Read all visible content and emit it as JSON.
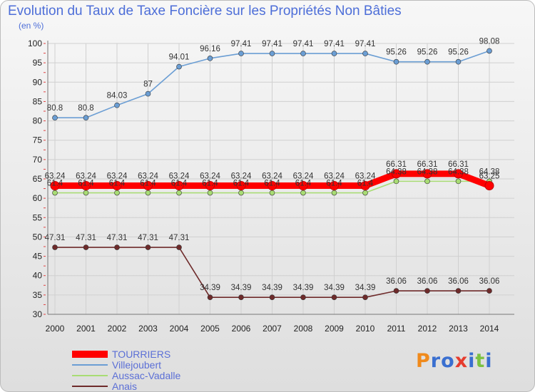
{
  "chart_data": {
    "type": "line",
    "title": "Evolution du Taux de Taxe Foncière sur les Propriétés Non Bâties",
    "ylabel": "(en %)",
    "xlabel": "",
    "x": [
      "2000",
      "2001",
      "2002",
      "2003",
      "2004",
      "2005",
      "2006",
      "2007",
      "2008",
      "2009",
      "2010",
      "2011",
      "2012",
      "2013",
      "2014"
    ],
    "ylim": [
      30,
      100
    ],
    "yticks": [
      30,
      35,
      40,
      45,
      50,
      55,
      60,
      65,
      70,
      75,
      80,
      85,
      90,
      95,
      100
    ],
    "grid": true,
    "legend_position": "bottom-left",
    "series": [
      {
        "name": "TOURRIERS",
        "color": "#ff0000",
        "values": [
          63.24,
          63.24,
          63.24,
          63.24,
          63.24,
          63.24,
          63.24,
          63.24,
          63.24,
          63.24,
          63.24,
          66.31,
          66.31,
          66.31,
          63.25
        ],
        "labels": [
          "63.24",
          "63.24",
          "63.24",
          "63.24",
          "63.24",
          "63.24",
          "63.24",
          "63.24",
          "63.24",
          "63.24",
          "63.24",
          "66.31",
          "66.31",
          "66.31",
          "63.25"
        ]
      },
      {
        "name": "Villejoubert",
        "color": "#6b9ed4",
        "values": [
          80.8,
          80.8,
          84.03,
          87,
          94.01,
          96.16,
          97.41,
          97.41,
          97.41,
          97.41,
          97.41,
          95.26,
          95.26,
          95.26,
          98.08
        ],
        "labels": [
          "80.8",
          "80.8",
          "84.03",
          "87",
          "94.01",
          "96.16",
          "97.41",
          "97.41",
          "97.41",
          "97.41",
          "97.41",
          "95.26",
          "95.26",
          "95.26",
          "98.08"
        ]
      },
      {
        "name": "Aussac-Vadalle",
        "color": "#a8dc74",
        "values": [
          61.4,
          61.4,
          61.4,
          61.4,
          61.4,
          61.4,
          61.4,
          61.4,
          61.4,
          61.4,
          61.4,
          64.38,
          64.38,
          64.38,
          64.38
        ],
        "labels": [
          "61.4",
          "61.4",
          "61.4",
          "61.4",
          "61.4",
          "61.4",
          "61.4",
          "61.4",
          "61.4",
          "61.4",
          "61.4",
          "64.38",
          "64.38",
          "64.38",
          "64.38"
        ]
      },
      {
        "name": "Anais",
        "color": "#6e2a2a",
        "values": [
          47.31,
          47.31,
          47.31,
          47.31,
          47.31,
          34.39,
          34.39,
          34.39,
          34.39,
          34.39,
          34.39,
          36.06,
          36.06,
          36.06,
          36.06
        ],
        "labels": [
          "47.31",
          "47.31",
          "47.31",
          "47.31",
          "47.31",
          "34.39",
          "34.39",
          "34.39",
          "34.39",
          "34.39",
          "34.39",
          "36.06",
          "36.06",
          "36.06",
          "36.06"
        ]
      }
    ]
  },
  "logo": {
    "text": "Proxiti",
    "letter_colors": [
      "#f08a1c",
      "#3a6fd0",
      "#3a6fd0",
      "#e63c2e",
      "#3a6fd0",
      "#7cc242",
      "#3a6fd0"
    ]
  }
}
